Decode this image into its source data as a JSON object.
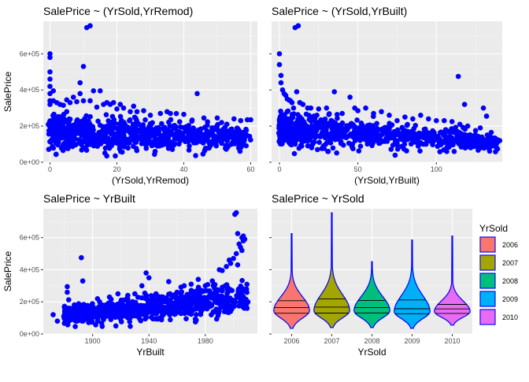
{
  "chart_data": [
    {
      "id": "p1",
      "type": "scatter",
      "title": "SalePrice ~ (YrSold,YrRemod)",
      "xlabel": "(YrSold,YrRemod)",
      "ylabel": "SalePrice",
      "xlim": [
        -2,
        62
      ],
      "ylim": [
        0,
        780000
      ],
      "xticks": [
        0,
        20,
        40,
        60
      ],
      "yticks": [
        0,
        200000,
        400000,
        600000
      ],
      "ytick_labels": [
        "0e+00",
        "2e+05",
        "4e+05",
        "6e+05"
      ],
      "show_y_ticklabels": true,
      "point_color": "#0000ff",
      "points": [
        [
          0,
          600000
        ],
        [
          0,
          580000
        ],
        [
          0,
          500000
        ],
        [
          0,
          460000
        ],
        [
          0,
          420000
        ],
        [
          0,
          380000
        ],
        [
          0,
          340000
        ],
        [
          0,
          320000
        ],
        [
          1,
          395000
        ],
        [
          1,
          340000
        ],
        [
          2,
          330000
        ],
        [
          3,
          320000
        ],
        [
          4,
          315000
        ],
        [
          5,
          345000
        ],
        [
          6,
          330000
        ],
        [
          7,
          360000
        ],
        [
          8,
          335000
        ],
        [
          9,
          380000
        ],
        [
          10,
          340000
        ],
        [
          11,
          745000
        ],
        [
          12,
          755000
        ],
        [
          13,
          395000
        ],
        [
          12,
          340000
        ],
        [
          14,
          305000
        ],
        [
          16,
          320000
        ],
        [
          18,
          320000
        ],
        [
          20,
          295000
        ],
        [
          22,
          300000
        ],
        [
          24,
          280000
        ],
        [
          26,
          280000
        ],
        [
          28,
          285000
        ],
        [
          30,
          260000
        ],
        [
          33,
          270000
        ],
        [
          36,
          270000
        ],
        [
          40,
          265000
        ],
        [
          44,
          380000
        ],
        [
          46,
          245000
        ],
        [
          50,
          245000
        ],
        [
          55,
          240000
        ],
        [
          57,
          230000
        ],
        [
          59,
          235000
        ],
        [
          60,
          235000
        ],
        [
          10,
          530000
        ],
        [
          9,
          440000
        ],
        [
          15,
          395000
        ],
        [
          17,
          330000
        ],
        [
          19,
          330000
        ],
        [
          21,
          320000
        ],
        [
          25,
          310000
        ],
        [
          35,
          280000
        ],
        [
          5,
          280000
        ],
        [
          3,
          250000
        ]
      ],
      "band": {
        "x0": 0,
        "x1": 60,
        "y_center_start": 170000,
        "y_center_end": 130000,
        "spread_start": 110000,
        "spread_end": 70000,
        "n": 850
      }
    },
    {
      "id": "p2",
      "type": "scatter",
      "title": "SalePrice ~ (YrSold,YrBuilt)",
      "xlabel": "(YrSold,YrBuilt)",
      "ylabel": "",
      "xlim": [
        -5,
        142
      ],
      "ylim": [
        0,
        780000
      ],
      "xticks": [
        0,
        50,
        100
      ],
      "yticks": [
        0,
        200000,
        400000,
        600000
      ],
      "ytick_labels": [
        "0e+00",
        "2e+05",
        "4e+05",
        "6e+05"
      ],
      "show_y_ticklabels": false,
      "point_color": "#0000ff",
      "points": [
        [
          0,
          600000
        ],
        [
          0,
          540000
        ],
        [
          1,
          480000
        ],
        [
          1,
          440000
        ],
        [
          2,
          400000
        ],
        [
          3,
          380000
        ],
        [
          4,
          370000
        ],
        [
          5,
          350000
        ],
        [
          6,
          345000
        ],
        [
          7,
          340000
        ],
        [
          8,
          330000
        ],
        [
          10,
          745000
        ],
        [
          12,
          755000
        ],
        [
          11,
          390000
        ],
        [
          13,
          330000
        ],
        [
          15,
          320000
        ],
        [
          18,
          300000
        ],
        [
          20,
          300000
        ],
        [
          25,
          295000
        ],
        [
          30,
          300000
        ],
        [
          35,
          390000
        ],
        [
          40,
          270000
        ],
        [
          45,
          360000
        ],
        [
          48,
          300000
        ],
        [
          50,
          285000
        ],
        [
          55,
          300000
        ],
        [
          60,
          270000
        ],
        [
          65,
          280000
        ],
        [
          70,
          260000
        ],
        [
          75,
          230000
        ],
        [
          80,
          250000
        ],
        [
          85,
          240000
        ],
        [
          90,
          260000
        ],
        [
          95,
          240000
        ],
        [
          100,
          230000
        ],
        [
          105,
          230000
        ],
        [
          110,
          225000
        ],
        [
          114,
          475000
        ],
        [
          115,
          210000
        ],
        [
          118,
          320000
        ],
        [
          120,
          200000
        ],
        [
          125,
          175000
        ],
        [
          128,
          190000
        ],
        [
          130,
          300000
        ],
        [
          132,
          255000
        ],
        [
          135,
          165000
        ],
        [
          138,
          130000
        ],
        [
          140,
          120000
        ],
        [
          5,
          280000
        ],
        [
          9,
          300000
        ],
        [
          22,
          255000
        ]
      ],
      "band": {
        "x0": 0,
        "x1": 140,
        "y_center_start": 180000,
        "y_center_end": 110000,
        "spread_start": 100000,
        "spread_end": 50000,
        "n": 850
      }
    },
    {
      "id": "p3",
      "type": "scatter",
      "title": "SalePrice ~ YrBuilt",
      "xlabel": "YrBuilt",
      "ylabel": "SalePrice",
      "xlim": [
        1865,
        2017
      ],
      "ylim": [
        0,
        780000
      ],
      "xticks": [
        1900,
        1940,
        1980
      ],
      "yticks": [
        0,
        200000,
        400000,
        600000
      ],
      "ytick_labels": [
        "0e+00",
        "2e+05",
        "4e+05",
        "6e+05"
      ],
      "show_y_ticklabels": true,
      "point_color": "#0000ff",
      "points": [
        [
          1872,
          120000
        ],
        [
          1875,
          80000
        ],
        [
          1880,
          120000
        ],
        [
          1882,
          260000
        ],
        [
          1882,
          295000
        ],
        [
          1885,
          110000
        ],
        [
          1890,
          140000
        ],
        [
          1892,
          475000
        ],
        [
          1893,
          330000
        ],
        [
          1895,
          130000
        ],
        [
          1898,
          110000
        ],
        [
          1900,
          130000
        ],
        [
          1905,
          200000
        ],
        [
          1910,
          175000
        ],
        [
          1912,
          230000
        ],
        [
          1915,
          180000
        ],
        [
          1918,
          250000
        ],
        [
          1920,
          200000
        ],
        [
          1922,
          210000
        ],
        [
          1925,
          240000
        ],
        [
          1930,
          250000
        ],
        [
          1935,
          300000
        ],
        [
          1938,
          380000
        ],
        [
          1940,
          350000
        ],
        [
          1945,
          250000
        ],
        [
          1948,
          200000
        ],
        [
          1950,
          230000
        ],
        [
          1955,
          250000
        ],
        [
          1960,
          260000
        ],
        [
          1965,
          300000
        ],
        [
          1970,
          310000
        ],
        [
          1975,
          340000
        ],
        [
          1980,
          300000
        ],
        [
          1985,
          330000
        ],
        [
          1990,
          400000
        ],
        [
          1992,
          395000
        ],
        [
          1995,
          420000
        ],
        [
          1997,
          460000
        ],
        [
          1998,
          440000
        ],
        [
          2000,
          470000
        ],
        [
          2002,
          500000
        ],
        [
          2003,
          430000
        ],
        [
          2004,
          560000
        ],
        [
          2005,
          540000
        ],
        [
          2006,
          600000
        ],
        [
          2007,
          610000
        ],
        [
          2008,
          590000
        ],
        [
          2001,
          745000
        ],
        [
          2002,
          755000
        ],
        [
          2003,
          625000
        ],
        [
          2007,
          580000
        ],
        [
          2006,
          520000
        ]
      ],
      "band": {
        "x0": 1880,
        "x1": 2010,
        "y_center_start": 120000,
        "y_center_end": 220000,
        "spread_start": 55000,
        "spread_end": 120000,
        "n": 850
      }
    },
    {
      "id": "p4",
      "type": "violin",
      "title": "SalePrice ~ YrSold",
      "xlabel": "YrSold",
      "ylabel": "",
      "ylim": [
        0,
        780000
      ],
      "yticks": [
        0,
        200000,
        400000,
        600000
      ],
      "show_y_ticklabels": false,
      "categories": [
        "2006",
        "2007",
        "2008",
        "2009",
        "2010"
      ],
      "colors": [
        "#F8766D",
        "#A3A500",
        "#00BF7D",
        "#00B0F6",
        "#E76BF3"
      ],
      "outline_color": "#0000ff",
      "series": [
        {
          "name": "2006",
          "min": 35000,
          "max": 625000,
          "q1": 129000,
          "median": 164000,
          "q3": 207000,
          "peak": 145000
        },
        {
          "name": "2007",
          "min": 40000,
          "max": 755000,
          "q1": 130000,
          "median": 167000,
          "q3": 218000,
          "peak": 145000
        },
        {
          "name": "2008",
          "min": 40000,
          "max": 450000,
          "q1": 131000,
          "median": 164000,
          "q3": 208000,
          "peak": 145000
        },
        {
          "name": "2009",
          "min": 35000,
          "max": 585000,
          "q1": 126000,
          "median": 157000,
          "q3": 212000,
          "peak": 140000
        },
        {
          "name": "2010",
          "min": 55000,
          "max": 610000,
          "q1": 128000,
          "median": 156000,
          "q3": 184000,
          "peak": 140000
        }
      ],
      "legend": {
        "title": "YrSold",
        "position": "right",
        "items": [
          "2006",
          "2007",
          "2008",
          "2009",
          "2010"
        ]
      }
    }
  ]
}
